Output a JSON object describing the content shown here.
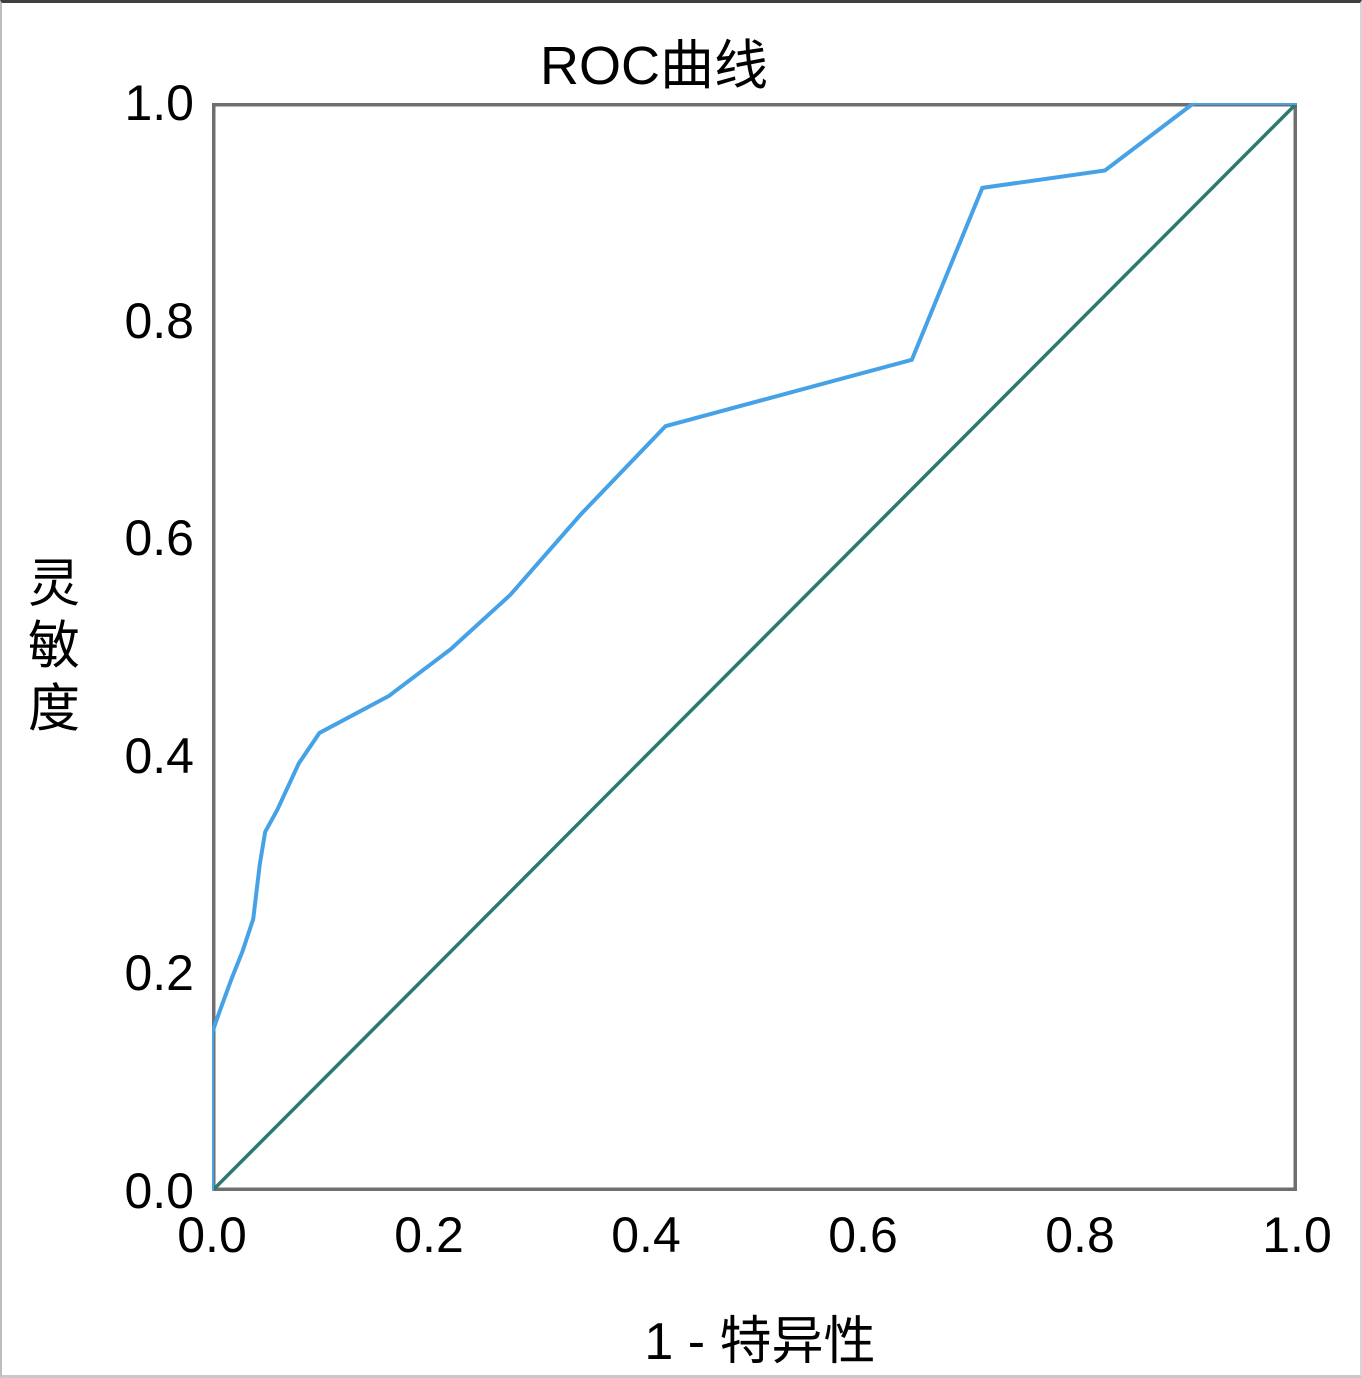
{
  "chart_data": {
    "type": "line",
    "title": "ROC曲线",
    "xlabel": "1 - 特异性",
    "ylabel": "灵敏度",
    "xlim": [
      0,
      1
    ],
    "ylim": [
      0,
      1
    ],
    "grid": false,
    "legend": false,
    "frame_color": "#6f6f6f",
    "xticks": {
      "values": [
        0,
        0.2,
        0.4,
        0.6,
        0.8,
        1.0
      ],
      "labels": [
        "0.0",
        "0.2",
        "0.4",
        "0.6",
        "0.8",
        "1.0"
      ]
    },
    "yticks": {
      "values": [
        0,
        0.2,
        0.4,
        0.6,
        0.8,
        1.0
      ],
      "labels": [
        "0.0",
        "0.2",
        "0.4",
        "0.6",
        "0.8",
        "1.0"
      ]
    },
    "series": [
      {
        "name": "ROC曲线",
        "id": "roc-curve",
        "color": "#46a2e6",
        "width": 4,
        "points": [
          [
            0.0,
            0.0
          ],
          [
            0.0,
            0.145
          ],
          [
            0.007,
            0.165
          ],
          [
            0.018,
            0.195
          ],
          [
            0.028,
            0.22
          ],
          [
            0.038,
            0.25
          ],
          [
            0.044,
            0.3
          ],
          [
            0.049,
            0.33
          ],
          [
            0.06,
            0.35
          ],
          [
            0.08,
            0.393
          ],
          [
            0.099,
            0.421
          ],
          [
            0.163,
            0.455
          ],
          [
            0.22,
            0.498
          ],
          [
            0.275,
            0.548
          ],
          [
            0.34,
            0.622
          ],
          [
            0.418,
            0.703
          ],
          [
            0.645,
            0.764
          ],
          [
            0.71,
            0.922
          ],
          [
            0.823,
            0.938
          ],
          [
            0.905,
            1.0
          ],
          [
            1.0,
            1.0
          ]
        ]
      },
      {
        "name": "参考线",
        "id": "reference-line",
        "color": "#2b7a6e",
        "width": 3.5,
        "points": [
          [
            0,
            0
          ],
          [
            1,
            1
          ]
        ]
      }
    ]
  }
}
